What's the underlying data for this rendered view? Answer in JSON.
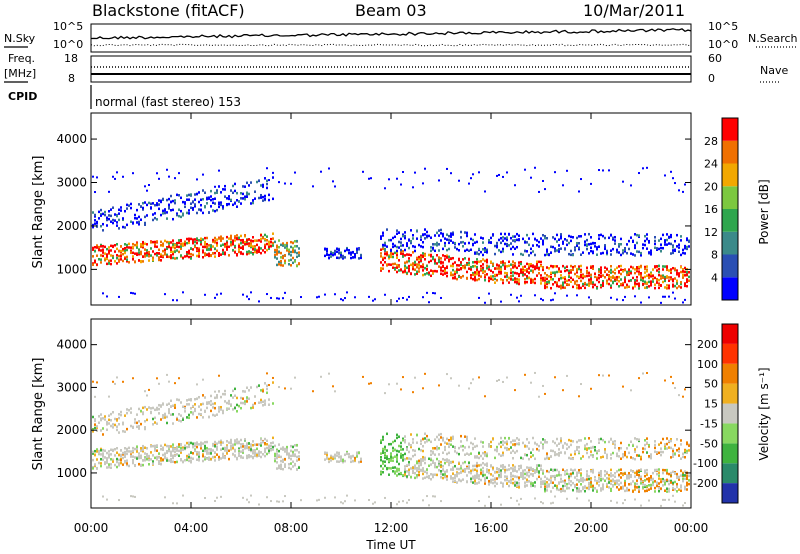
{
  "header": {
    "station": "Blackstone (fitACF)",
    "beam": "Beam 03",
    "date": "10/Mar/2011"
  },
  "strip_labels": {
    "nsky": "N.Sky",
    "nsky_ticks": [
      "10^5",
      "10^0"
    ],
    "nsearch": "N.Search",
    "nsearch_ticks": [
      "10^5",
      "10^0"
    ],
    "freq": "Freq.",
    "freq_unit": "[MHz]",
    "freq_ticks": [
      "18",
      "8"
    ],
    "nave": "Nave",
    "nave_ticks": [
      "60",
      "0"
    ],
    "cpid": "CPID",
    "cpid_text": "normal (fast stereo) 153"
  },
  "chart_data": [
    {
      "type": "heatmap",
      "name": "power",
      "ylabel": "Slant Range [km]",
      "yticks": [
        "1000",
        "2000",
        "3000",
        "4000"
      ],
      "ylim": [
        180,
        4600
      ],
      "colorbar": {
        "label": "Power [dB]",
        "ticks": [
          "4",
          "8",
          "12",
          "16",
          "20",
          "24",
          "28"
        ],
        "colors": [
          "#0000ff",
          "#2a4fb3",
          "#3b8a8a",
          "#2fa64e",
          "#7cc840",
          "#f2a800",
          "#f07000",
          "#ff0000"
        ]
      }
    },
    {
      "type": "heatmap",
      "name": "velocity",
      "ylabel": "Slant Range [km]",
      "yticks": [
        "1000",
        "2000",
        "3000",
        "4000"
      ],
      "ylim": [
        180,
        4600
      ],
      "colorbar": {
        "label": "Velocity [m s⁻¹]",
        "ticks": [
          "200",
          "100",
          "50",
          "15",
          "-15",
          "-50",
          "-100",
          "-200"
        ],
        "colors": [
          "#2233aa",
          "#2a8a6a",
          "#3fb33f",
          "#88d860",
          "#c8c8c0",
          "#f0b020",
          "#f08000",
          "#ff3300",
          "#ee0000"
        ]
      }
    }
  ],
  "xaxis": {
    "label": "Time UT",
    "ticks": [
      "00:00",
      "04:00",
      "08:00",
      "12:00",
      "16:00",
      "20:00",
      "00:00"
    ]
  }
}
